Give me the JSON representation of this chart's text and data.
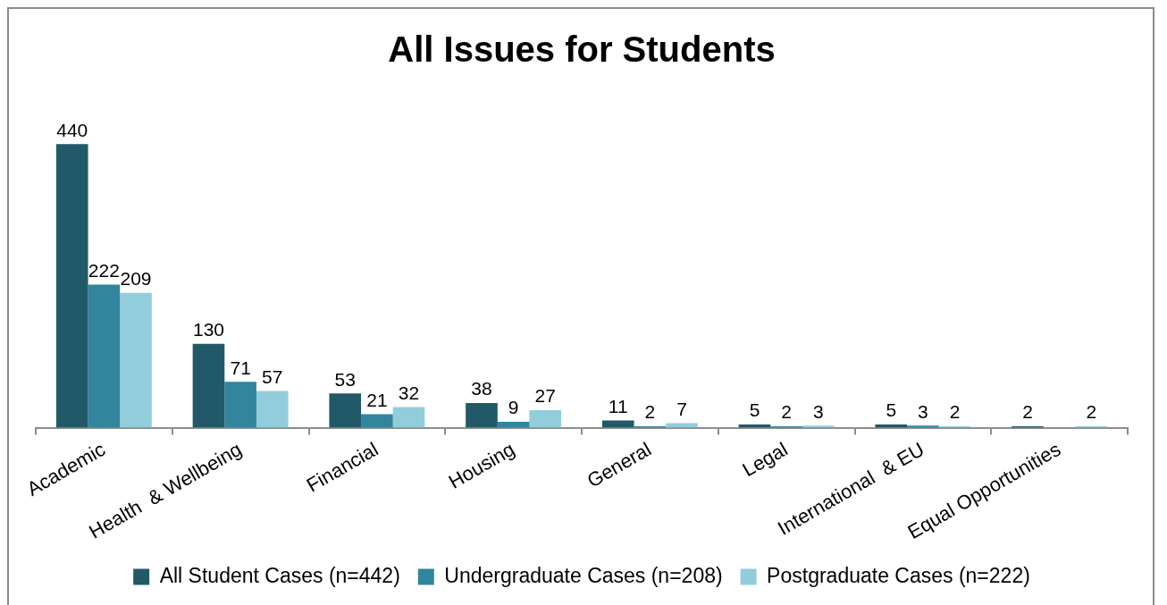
{
  "chart_data": {
    "type": "bar",
    "title": "All Issues for Students",
    "categories": [
      "Academic",
      "Health  & Wellbeing",
      "Financial",
      "Housing",
      "General",
      "Legal",
      "International  & EU",
      "Equal Opportunities"
    ],
    "series": [
      {
        "name": "All Student Cases (n=442)",
        "color": "#215968",
        "values": [
          440,
          130,
          53,
          38,
          11,
          5,
          5,
          2
        ]
      },
      {
        "name": "Undergraduate Cases (n=208)",
        "color": "#31859c",
        "values": [
          222,
          71,
          21,
          9,
          2,
          2,
          3,
          null
        ]
      },
      {
        "name": "Postgraduate Cases (n=222)",
        "color": "#92cddc",
        "values": [
          209,
          57,
          32,
          27,
          7,
          3,
          2,
          2
        ]
      }
    ],
    "data_labels": true,
    "legend": "bottom",
    "tick_labels": "x"
  }
}
